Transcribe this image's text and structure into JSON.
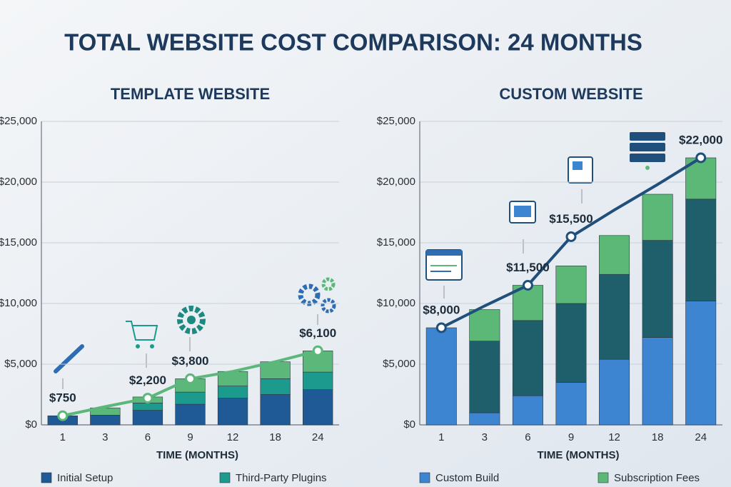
{
  "title": "TOTAL WEBSITE COST COMPARISON: 24 MONTHS",
  "chart_data": [
    {
      "type": "bar",
      "stacked": true,
      "title": "TEMPLATE WEBSITE",
      "x_label": "TIME (MONTHS)",
      "categories": [
        "1",
        "3",
        "6",
        "9",
        "12",
        "18",
        "24"
      ],
      "ylim": [
        0,
        25000
      ],
      "yticks": [
        {
          "value": 0,
          "label": "$0"
        },
        {
          "value": 5000,
          "label": "$5,000"
        },
        {
          "value": 10000,
          "label": "$10,000"
        },
        {
          "value": 15000,
          "label": "$15,000"
        },
        {
          "value": 20000,
          "label": "$20,000"
        },
        {
          "value": 25000,
          "label": "$25,000"
        }
      ],
      "grid": true,
      "series": [
        {
          "name": "Initial Setup",
          "color": "#1f5a96",
          "values": [
            750,
            800,
            1200,
            1700,
            2200,
            2500,
            2900
          ]
        },
        {
          "name": "Third-Party Plugins",
          "color": "#1c9a8e",
          "values": [
            0,
            0,
            600,
            1000,
            1000,
            1300,
            1450
          ]
        },
        {
          "color": "#5cb87a",
          "values": [
            0,
            600,
            500,
            1100,
            1200,
            1400,
            1750
          ]
        },
        {
          "type": "line",
          "color": "#5cb87a",
          "values": [
            750,
            1500,
            2200,
            3800,
            4400,
            5200,
            6100
          ],
          "value_labels": [
            "$750",
            null,
            "$2,200",
            "$3,800",
            null,
            null,
            "$6,100"
          ]
        }
      ]
    },
    {
      "type": "bar",
      "stacked": true,
      "title": "CUSTOM WEBSITE",
      "x_label": "TIME (MONTHS)",
      "categories": [
        "1",
        "3",
        "6",
        "9",
        "12",
        "18",
        "24"
      ],
      "ylim": [
        0,
        25000
      ],
      "yticks": [
        {
          "value": 0,
          "label": "$0"
        },
        {
          "value": 5000,
          "label": "$5,000"
        },
        {
          "value": 10000,
          "label": "$10,000"
        },
        {
          "value": 15000,
          "label": "$15,000"
        },
        {
          "value": 20000,
          "label": "$20,000"
        },
        {
          "value": 25000,
          "label": "$25,000"
        }
      ],
      "grid": true,
      "series": [
        {
          "name": "Custom Build",
          "color": "#3d85d1",
          "values": [
            8000,
            1000,
            2400,
            3500,
            5400,
            7200,
            10200
          ]
        },
        {
          "color": "#1f5f6b",
          "values": [
            0,
            5900,
            6200,
            6500,
            7000,
            8000,
            8400
          ]
        },
        {
          "name": "Subscription Fees",
          "color": "#5cb877",
          "values": [
            0,
            2600,
            2900,
            3100,
            3200,
            3800,
            3400
          ]
        },
        {
          "type": "line",
          "color": "#1f4f7a",
          "values": [
            8000,
            9800,
            11500,
            15500,
            17700,
            19800,
            22000
          ],
          "value_labels": [
            "$8,000",
            null,
            "$11,500",
            "$15,500",
            null,
            null,
            "$22,000"
          ]
        }
      ]
    }
  ]
}
